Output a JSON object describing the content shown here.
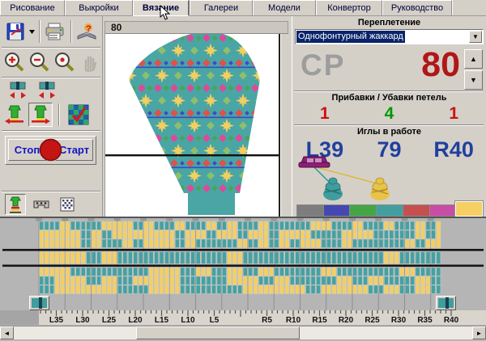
{
  "tabs": {
    "items": [
      "Рисование",
      "Выкройки",
      "Вязание",
      "Галереи",
      "Модели",
      "Конвертор",
      "Руководство"
    ],
    "active_index": 2
  },
  "toolbar": {
    "stop_label": "Стоп",
    "start_label": "Старт",
    "icons": [
      "save-icon",
      "save-dropdown-arrow",
      "print-icon",
      "help-book-icon",
      "zoom-in-icon",
      "zoom-out-icon",
      "zoom-actual-icon",
      "hand-icon",
      "left-marker-icon",
      "right-marker-icon",
      "garment-move-left-icon",
      "garment-move-right-icon",
      "check-pattern-icon",
      "garment-small-icon",
      "carriage-small-icon",
      "grid-icon"
    ]
  },
  "preview": {
    "row_label": "80"
  },
  "panel": {
    "interlacing_title": "Переплетение",
    "interlacing_value": "Однофонтурный жаккард",
    "cp_label": "СР",
    "row_count": "80",
    "incdec_title": "Прибавки / Убавки петель",
    "incdec_left": "1",
    "incdec_center": "4",
    "incdec_right": "1",
    "needles_title": "Иглы в работе",
    "needles_left": "L39",
    "needles_center": "79",
    "needles_right": "R40",
    "palette": [
      "#7d7d7d",
      "#4448b0",
      "#44a544",
      "#439f9f",
      "#c65050",
      "#ca4da5",
      "#f5cf63"
    ],
    "selected_palette_index": 6
  },
  "colors": {
    "row_count_red": "#b01717",
    "inc_red": "#cc1111",
    "inc_green": "#009900",
    "needles_navy": "#20409d",
    "cp_gray": "#9d9d9d",
    "stitch_teal": "#46a1a1",
    "stitch_yellow": "#f3cf63",
    "pattern_bg_teal": "#4aa5a5",
    "pattern_star_yellow": "#f2cf5e",
    "pattern_pink": "#e04898",
    "pattern_red": "#d9544c",
    "pattern_green": "#4aa54e",
    "pattern_blue": "#3c48c8"
  },
  "needle_bed": {
    "ruler_labels": [
      "L35",
      "L30",
      "L25",
      "L20",
      "L15",
      "L10",
      "L5",
      "R5",
      "R10",
      "R15",
      "R20",
      "R25",
      "R30",
      "R35",
      "R40"
    ],
    "ruler_values": [
      -35,
      -30,
      -25,
      -20,
      -15,
      -10,
      -5,
      5,
      10,
      15,
      20,
      25,
      30,
      35,
      40
    ],
    "columns": 77,
    "rows_above": 3,
    "rows_below": 3
  }
}
